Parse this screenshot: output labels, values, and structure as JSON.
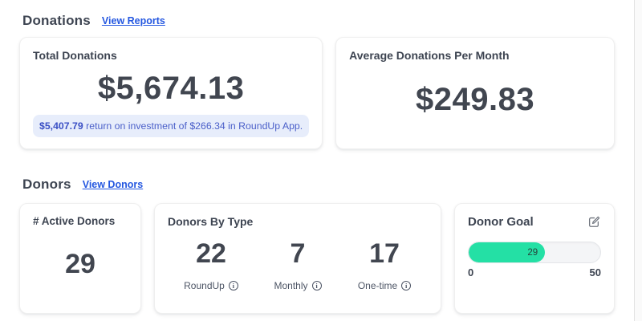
{
  "donations_section": {
    "title": "Donations",
    "link_label": "View Reports",
    "total_card": {
      "label": "Total Donations",
      "value": "$5,674.13",
      "note_highlight": "$5,407.79",
      "note_rest": " return on investment of $266.34 in RoundUp App."
    },
    "average_card": {
      "label": "Average Donations Per Month",
      "value": "$249.83"
    }
  },
  "donors_section": {
    "title": "Donors",
    "link_label": "View Donors",
    "active_card": {
      "label": "# Active Donors",
      "value": "29"
    },
    "type_card": {
      "label": "Donors By Type",
      "items": [
        {
          "value": "22",
          "label": "RoundUp",
          "icon": "info-icon"
        },
        {
          "value": "7",
          "label": "Monthly",
          "icon": "info-icon"
        },
        {
          "value": "17",
          "label": "One-time",
          "icon": "info-icon"
        }
      ]
    },
    "goal_card": {
      "label": "Donor Goal",
      "icon": "edit-icon",
      "progress": {
        "current_label": "29",
        "current": 29,
        "min_label": "0",
        "max_label": "50",
        "min": 0,
        "max": 50,
        "percent": 58
      }
    }
  },
  "colors": {
    "accent_blue": "#2457e0",
    "note_bg": "#e7edfb",
    "note_text": "#4a5fc9",
    "goal_fill_green": "#24e0a5",
    "heading_dark": "#3d4451"
  }
}
